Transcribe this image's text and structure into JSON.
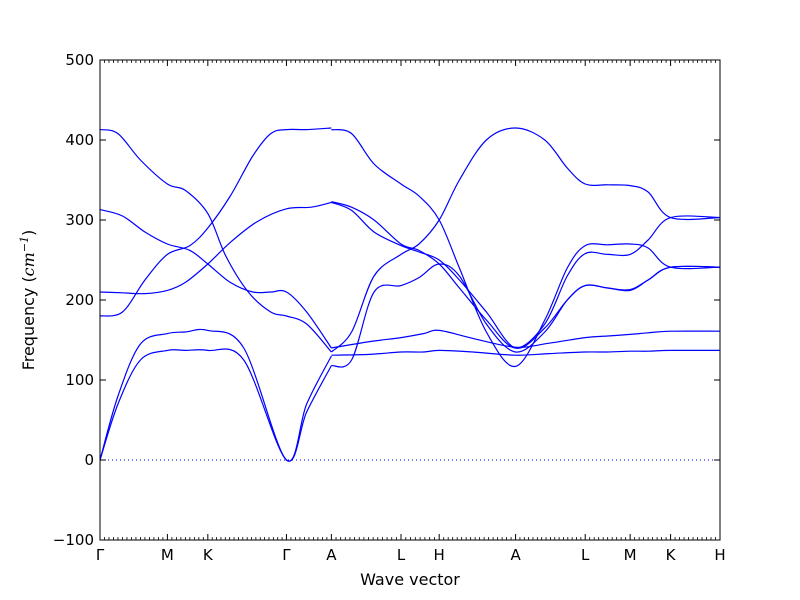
{
  "chart_data": {
    "type": "line",
    "xlabel": "Wave vector",
    "ylabel": {
      "prefix": "Frequency (",
      "unit_base": "cm",
      "unit_exponent": "−1",
      "suffix": ")"
    },
    "ylim": [
      -100,
      500
    ],
    "yticks": [
      "−100",
      "0",
      "100",
      "200",
      "300",
      "400",
      "500"
    ],
    "ytick_values": [
      -100,
      0,
      100,
      200,
      300,
      400,
      500
    ],
    "xlim": [
      0,
      13.8
    ],
    "special_points": [
      {
        "label": "Γ",
        "x": 0
      },
      {
        "label": "M",
        "x": 1.5
      },
      {
        "label": "K",
        "x": 2.4
      },
      {
        "label": "Γ",
        "x": 4.15
      },
      {
        "label": "A",
        "x": 5.15
      },
      {
        "label": "L",
        "x": 6.7
      },
      {
        "label": "H",
        "x": 7.55
      },
      {
        "label": "A",
        "x": 9.25
      },
      {
        "label": "L",
        "x": 10.8
      },
      {
        "label": "M",
        "x": 11.8
      },
      {
        "label": "K",
        "x": 12.7
      },
      {
        "label": "H",
        "x": 13.8
      }
    ],
    "zero_line": true,
    "line_color": "#0000ff",
    "series": [
      {
        "x": [
          0,
          0.4,
          0.9,
          1.5,
          1.9,
          2.4,
          3.2,
          4.15,
          4.6,
          5.15
        ],
        "values": [
          0,
          70,
          125,
          137,
          137,
          137,
          125,
          0,
          60,
          118
        ]
      },
      {
        "x": [
          0,
          0.4,
          0.9,
          1.5,
          1.9,
          2.4,
          3.2,
          4.15,
          4.6,
          5.15
        ],
        "values": [
          0,
          80,
          145,
          158,
          160,
          162,
          140,
          0,
          70,
          130
        ]
      },
      {
        "x": [
          0,
          0.5,
          1.0,
          1.5,
          2.0,
          2.4,
          2.9,
          3.4,
          3.8,
          4.15,
          4.6,
          5.15
        ],
        "values": [
          180,
          185,
          225,
          257,
          268,
          290,
          330,
          380,
          408,
          413,
          413,
          415
        ]
      },
      {
        "x": [
          0,
          0.5,
          1.0,
          1.5,
          1.9,
          2.4,
          2.9,
          3.5,
          4.15,
          4.7,
          5.15
        ],
        "values": [
          210,
          209,
          208,
          212,
          222,
          245,
          272,
          298,
          314,
          316,
          322
        ]
      },
      {
        "x": [
          0,
          0.5,
          1.0,
          1.5,
          2.0,
          2.4,
          2.9,
          3.4,
          3.8,
          4.15,
          4.6,
          5.15
        ],
        "values": [
          313,
          305,
          285,
          270,
          262,
          245,
          222,
          210,
          210,
          210,
          185,
          140
        ]
      },
      {
        "x": [
          0,
          0.4,
          0.9,
          1.5,
          1.9,
          2.4,
          2.8,
          3.3,
          3.8,
          4.15,
          4.6,
          5.15
        ],
        "values": [
          413,
          408,
          375,
          345,
          337,
          308,
          255,
          210,
          185,
          180,
          170,
          135
        ]
      },
      {
        "x": [
          5.15,
          6.0,
          6.7,
          7.2,
          7.55,
          8.3,
          9.25,
          10.0,
          10.8,
          11.3,
          11.8,
          12.2,
          12.7,
          13.8
        ],
        "values": [
          131,
          132,
          135,
          135,
          137,
          135,
          131,
          133,
          135,
          135,
          136,
          136,
          137,
          137
        ]
      },
      {
        "x": [
          5.15,
          6.0,
          6.7,
          7.2,
          7.55,
          8.3,
          9.25,
          10.0,
          10.8,
          11.3,
          11.8,
          12.2,
          12.7,
          13.8
        ],
        "values": [
          140,
          148,
          153,
          158,
          162,
          152,
          141,
          146,
          153,
          155,
          157,
          159,
          161,
          161
        ]
      },
      {
        "x": [
          5.15,
          5.6,
          6.1,
          6.7,
          7.1,
          7.55,
          8.0,
          8.6,
          9.25,
          9.9,
          10.4,
          10.8,
          11.3,
          11.8,
          12.2,
          12.7,
          13.8
        ],
        "values": [
          118,
          125,
          210,
          218,
          228,
          245,
          230,
          170,
          135,
          160,
          200,
          218,
          215,
          212,
          225,
          241,
          241
        ]
      },
      {
        "x": [
          5.15,
          5.6,
          6.1,
          6.7,
          7.1,
          7.55,
          8.0,
          8.6,
          9.25,
          9.9,
          10.4,
          10.8,
          11.3,
          11.8,
          12.2,
          12.7,
          13.8
        ],
        "values": [
          135,
          160,
          230,
          257,
          270,
          300,
          350,
          400,
          415,
          400,
          365,
          345,
          344,
          343,
          335,
          303,
          303
        ]
      },
      {
        "x": [
          5.15,
          5.6,
          6.1,
          6.7,
          7.1,
          7.55,
          8.0,
          8.6,
          9.25,
          9.9,
          10.4,
          10.8,
          11.3,
          11.8,
          12.2,
          12.7,
          13.8
        ],
        "values": [
          323,
          316,
          300,
          270,
          262,
          245,
          215,
          175,
          140,
          170,
          230,
          258,
          257,
          257,
          275,
          303,
          303
        ]
      },
      {
        "x": [
          5.15,
          5.6,
          6.1,
          6.7,
          7.1,
          7.55,
          8.0,
          8.6,
          9.25,
          9.9,
          10.4,
          10.8,
          11.3,
          11.8,
          12.2,
          12.7,
          13.8
        ],
        "values": [
          413,
          408,
          370,
          345,
          330,
          300,
          240,
          160,
          117,
          175,
          240,
          268,
          269,
          270,
          265,
          241,
          241
        ]
      },
      {
        "x": [
          5.15,
          5.6,
          6.1,
          6.7,
          7.1,
          7.55,
          8.0,
          8.6,
          9.25,
          9.9,
          10.4,
          10.8,
          11.3,
          11.8,
          12.2,
          12.7,
          13.8
        ],
        "values": [
          322,
          312,
          285,
          268,
          260,
          250,
          225,
          185,
          140,
          165,
          200,
          218,
          215,
          213,
          225,
          241,
          241
        ]
      }
    ]
  }
}
